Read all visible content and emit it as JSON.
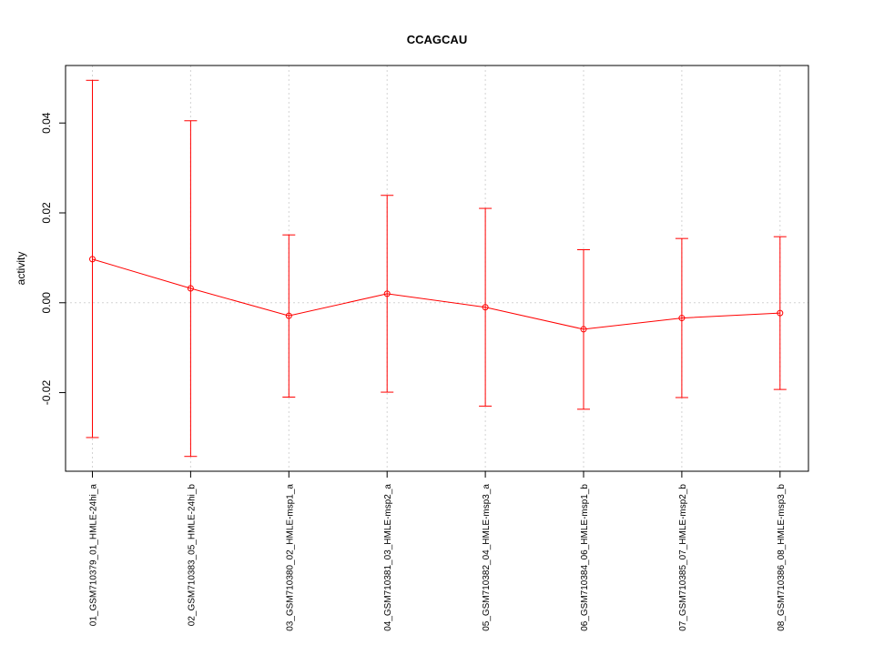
{
  "chart_data": {
    "type": "line",
    "title": "CCAGCAU",
    "xlabel": "",
    "ylabel": "activity",
    "categories": [
      "01_GSM710379_01_HMLE-24hi_a",
      "02_GSM710383_05_HMLE-24hi_b",
      "03_GSM710380_02_HMLE-msp1_a",
      "04_GSM710381_03_HMLE-msp2_a",
      "05_GSM710382_04_HMLE-msp3_a",
      "06_GSM710384_06_HMLE-msp1_b",
      "07_GSM710385_07_HMLE-msp2_b",
      "08_GSM710386_08_HMLE-msp3_b"
    ],
    "series": [
      {
        "values": [
          0.0097,
          0.0032,
          -0.0029,
          0.002,
          -0.001,
          -0.0059,
          -0.0034,
          -0.0023
        ],
        "upper": [
          0.0495,
          0.0405,
          0.0151,
          0.0239,
          0.021,
          0.0118,
          0.0143,
          0.0147
        ],
        "lower": [
          -0.03,
          -0.0342,
          -0.021,
          -0.0199,
          -0.023,
          -0.0237,
          -0.0211,
          -0.0193
        ],
        "color": "#ff0000"
      }
    ],
    "yticks": [
      -0.02,
      0.0,
      0.02,
      0.04
    ],
    "ytick_labels": [
      "-0.02",
      "0.00",
      "0.02",
      "0.04"
    ],
    "ylim": [
      -0.0375,
      0.0528
    ],
    "grid": true,
    "error_bars": true
  }
}
